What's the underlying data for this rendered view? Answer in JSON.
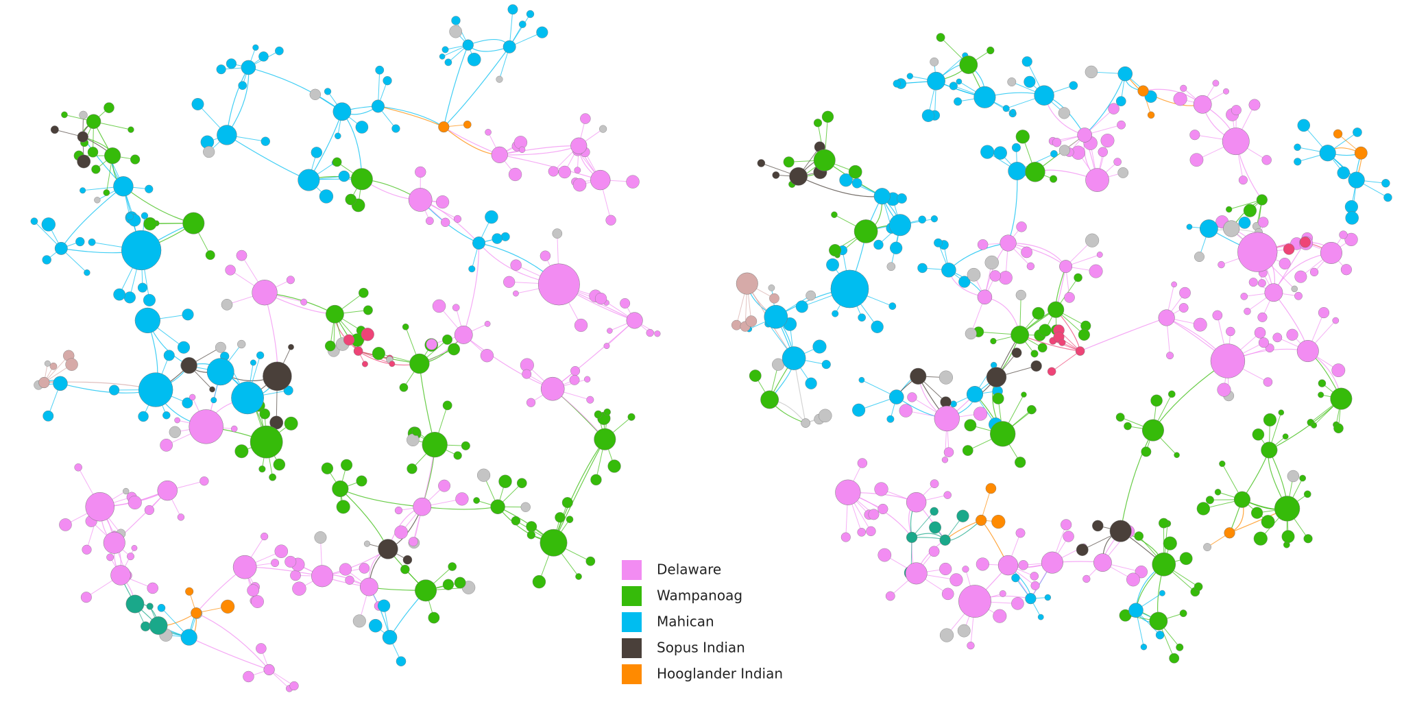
{
  "legend": {
    "items": [
      {
        "label": "Delaware",
        "color": "#f28cf2"
      },
      {
        "label": "Wampanoag",
        "color": "#36bb0a"
      },
      {
        "label": "Mahican",
        "color": "#00bdf0"
      },
      {
        "label": "Sopus Indian",
        "color": "#4a403a"
      },
      {
        "label": "Hooglander Indian",
        "color": "#ff8a00"
      }
    ]
  }
}
